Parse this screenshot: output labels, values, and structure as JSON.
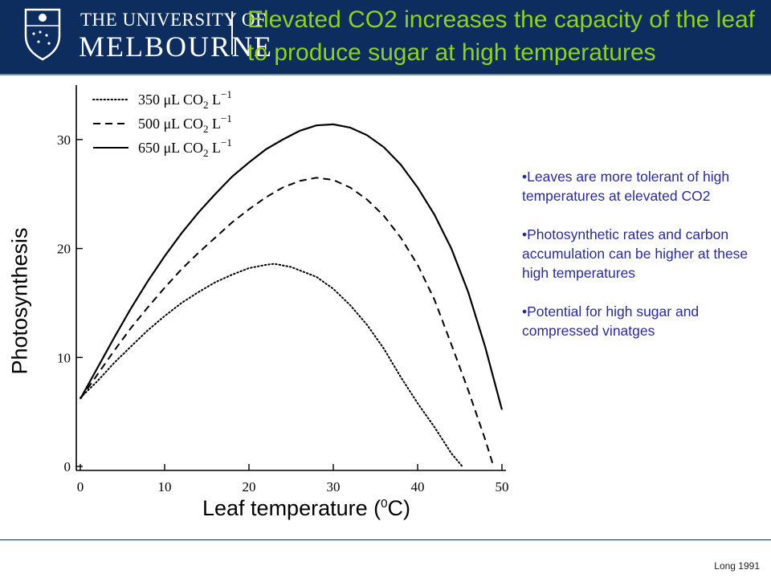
{
  "header": {
    "uni_line1": "THE UNIVERSITY OF",
    "uni_line2": "MELBOURNE",
    "title": "Elevated CO2 increases the capacity of the leaf to produce sugar at high temperatures",
    "bg_color": "#0d2d5e",
    "title_color": "#8fd11e"
  },
  "chart_data": {
    "type": "line",
    "xlabel": "Leaf temperature (",
    "xlabel_sup": "0",
    "xlabel_suffix": "C)",
    "ylabel": "Photosynthesis",
    "xlim": [
      0,
      50
    ],
    "ylim": [
      0,
      35
    ],
    "xticks": [
      0,
      10,
      20,
      30,
      40,
      50
    ],
    "yticks": [
      0,
      10,
      20,
      30
    ],
    "grid": false,
    "legend_placement": "top-left",
    "series": [
      {
        "name": "350 μL CO",
        "sub": "2",
        "unit": " L",
        "sup": "−1",
        "style": "dotted",
        "x": [
          0,
          2,
          4,
          6,
          8,
          10,
          12,
          14,
          16,
          18,
          20,
          22,
          23,
          25,
          28,
          30,
          32,
          34,
          36,
          38,
          40,
          42,
          44,
          45.3
        ],
        "y": [
          6.3,
          7.8,
          9.5,
          11.0,
          12.5,
          13.8,
          15.0,
          16.0,
          16.9,
          17.6,
          18.2,
          18.5,
          18.6,
          18.3,
          17.4,
          16.3,
          14.8,
          13.0,
          10.8,
          8.2,
          5.8,
          3.6,
          1.2,
          0
        ]
      },
      {
        "name": "500 μL CO",
        "sub": "2",
        "unit": " L",
        "sup": "−1",
        "style": "dashed",
        "x": [
          0,
          2,
          4,
          6,
          8,
          10,
          12,
          14,
          16,
          18,
          20,
          22,
          24,
          26,
          28,
          30,
          32,
          34,
          36,
          38,
          40,
          42,
          44,
          46,
          48,
          49
        ],
        "y": [
          6.2,
          8.4,
          10.6,
          12.7,
          14.6,
          16.4,
          18.1,
          19.6,
          21.0,
          22.4,
          23.6,
          24.7,
          25.6,
          26.2,
          26.5,
          26.3,
          25.6,
          24.5,
          23.0,
          21.0,
          18.5,
          15.3,
          11.2,
          7.0,
          2.5,
          0
        ]
      },
      {
        "name": "650 μL CO",
        "sub": "2",
        "unit": " L",
        "sup": "−1",
        "style": "solid",
        "x": [
          0,
          2,
          4,
          6,
          8,
          10,
          12,
          14,
          16,
          18,
          20,
          22,
          24,
          26,
          28,
          30,
          32,
          34,
          36,
          38,
          40,
          42,
          44,
          46,
          48,
          50
        ],
        "y": [
          6.2,
          9.0,
          11.8,
          14.5,
          17.0,
          19.3,
          21.4,
          23.3,
          25.0,
          26.6,
          27.9,
          29.1,
          30.0,
          30.8,
          31.3,
          31.4,
          31.1,
          30.4,
          29.3,
          27.7,
          25.6,
          23.1,
          20.0,
          16.0,
          11.0,
          5.2
        ]
      }
    ]
  },
  "bullets": [
    "•Leaves are more tolerant of high temperatures  at elevated CO2",
    "•Photosynthetic rates and carbon accumulation can be higher at these high temperatures",
    "•Potential for high sugar and compressed vinatges"
  ],
  "source": "Long 1991"
}
